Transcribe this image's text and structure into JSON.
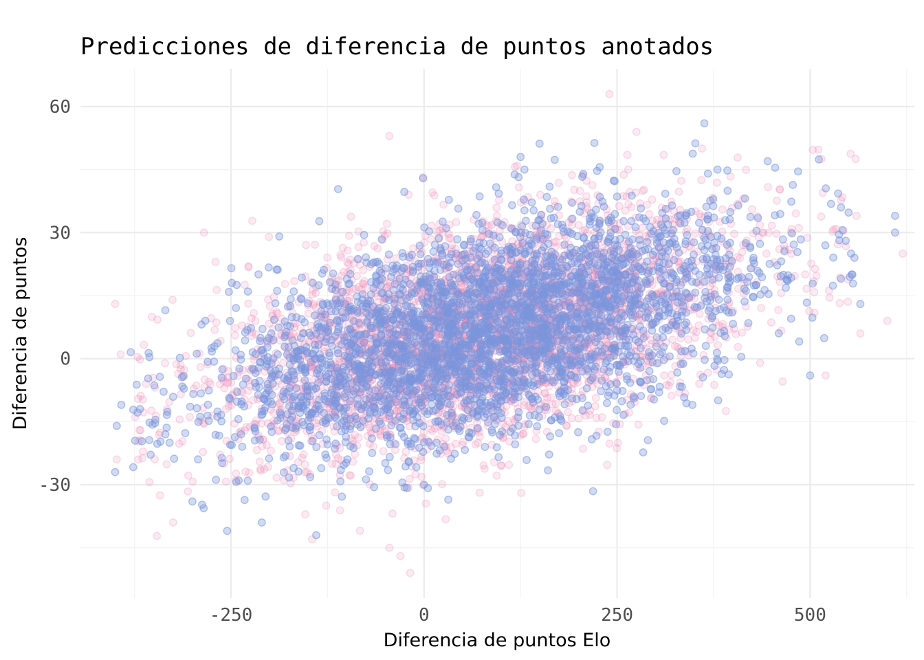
{
  "chart_data": {
    "type": "scatter",
    "title": "Predicciones de diferencia de puntos anotados",
    "xlabel": "Diferencia de puntos Elo",
    "ylabel": "Diferencia de puntos",
    "xlim": [
      -445,
      635
    ],
    "ylim": [
      -57,
      69
    ],
    "x_ticks": [
      -250,
      0,
      250,
      500
    ],
    "x_tick_labels": [
      "-250",
      "0",
      "250",
      "500"
    ],
    "y_ticks": [
      -30,
      0,
      30,
      60
    ],
    "y_tick_labels": [
      "-30",
      "0",
      "30",
      "60"
    ],
    "grid": true,
    "legend": "none",
    "series": [
      {
        "color": "#ef8bb5",
        "opacity": 0.18,
        "n_points": 3500,
        "relationship": {
          "intercept": 3.0,
          "slope": 0.042,
          "residual_sd": 12.5,
          "x_center": 80,
          "x_sd": 165
        },
        "notable_points": [
          {
            "x": -400,
            "y": 13
          },
          {
            "x": -393,
            "y": 1
          },
          {
            "x": -398,
            "y": -24
          },
          {
            "x": -370,
            "y": -24
          },
          {
            "x": -325,
            "y": -39
          },
          {
            "x": -285,
            "y": 30
          },
          {
            "x": -270,
            "y": 23
          },
          {
            "x": -45,
            "y": 53
          },
          {
            "x": -20,
            "y": 39
          },
          {
            "x": 240,
            "y": 63
          },
          {
            "x": 275,
            "y": 54
          },
          {
            "x": 360,
            "y": 50
          },
          {
            "x": 560,
            "y": 34
          },
          {
            "x": 565,
            "y": 6
          },
          {
            "x": 600,
            "y": 9
          },
          {
            "x": 620,
            "y": 25
          },
          {
            "x": -18,
            "y": -51
          },
          {
            "x": -45,
            "y": -45
          },
          {
            "x": -145,
            "y": -43
          },
          {
            "x": 520,
            "y": -4
          }
        ]
      },
      {
        "color": "#7b96dc",
        "opacity": 0.35,
        "n_points": 3500,
        "relationship": {
          "intercept": 3.0,
          "slope": 0.042,
          "residual_sd": 12.0,
          "x_center": 85,
          "x_sd": 165
        },
        "notable_points": [
          {
            "x": -400,
            "y": -27
          },
          {
            "x": -398,
            "y": -16
          },
          {
            "x": -392,
            "y": -11
          },
          {
            "x": -368,
            "y": -12
          },
          {
            "x": -335,
            "y": -18
          },
          {
            "x": -255,
            "y": -41
          },
          {
            "x": 363,
            "y": 56
          },
          {
            "x": 125,
            "y": 48
          },
          {
            "x": 130,
            "y": 45
          },
          {
            "x": 445,
            "y": 47
          },
          {
            "x": 380,
            "y": 45
          },
          {
            "x": 610,
            "y": 34
          },
          {
            "x": 610,
            "y": 30
          },
          {
            "x": 565,
            "y": 13
          },
          {
            "x": 540,
            "y": 36
          },
          {
            "x": 553,
            "y": 25
          },
          {
            "x": 500,
            "y": -4
          },
          {
            "x": -300,
            "y": -34
          },
          {
            "x": -210,
            "y": -39
          },
          {
            "x": 0,
            "y": -30
          }
        ]
      }
    ]
  }
}
